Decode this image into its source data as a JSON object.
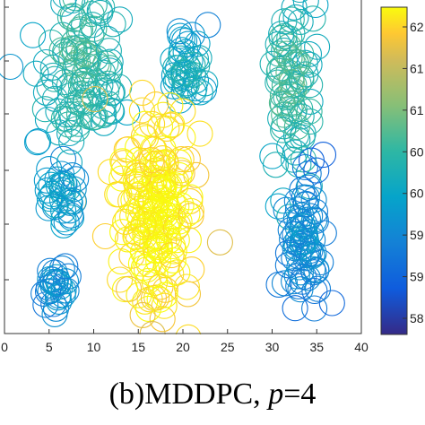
{
  "chart_data": {
    "type": "scatter",
    "marker": "open-circle",
    "title": "",
    "xlabel": "",
    "ylabel": "",
    "xlim": [
      0,
      40
    ],
    "x_ticks": [
      0,
      5,
      10,
      15,
      20,
      25,
      30,
      35,
      40
    ],
    "x_tick_labels": [
      "0",
      "5",
      "10",
      "15",
      "20",
      "25",
      "30",
      "35",
      "40"
    ],
    "grid": false,
    "colormap": "parula",
    "colorbar": {
      "position": "right",
      "tick_labels": [
        "62",
        "61",
        "61",
        "60",
        "60",
        "59",
        "59",
        "58"
      ]
    },
    "clusters": [
      {
        "id": "upper-left",
        "center": [
          8.5,
          8.2
        ],
        "spread": [
          3.6,
          2.6
        ],
        "count": 120,
        "color_value": 0.44
      },
      {
        "id": "upper-middle",
        "center": [
          20.5,
          8.0
        ],
        "spread": [
          2.0,
          1.0
        ],
        "count": 45,
        "color_value": 0.35
      },
      {
        "id": "upper-right",
        "center": [
          32.2,
          7.5
        ],
        "spread": [
          2.1,
          3.0
        ],
        "count": 90,
        "color_value": 0.45
      },
      {
        "id": "center-large",
        "center": [
          17.0,
          3.0
        ],
        "spread": [
          4.5,
          3.0
        ],
        "count": 200,
        "color_value": 0.9
      },
      {
        "id": "mid-left",
        "center": [
          6.5,
          3.7
        ],
        "spread": [
          1.5,
          1.0
        ],
        "count": 35,
        "color_value": 0.3
      },
      {
        "id": "lower-left",
        "center": [
          6.0,
          0.7
        ],
        "spread": [
          1.4,
          1.0
        ],
        "count": 30,
        "color_value": 0.22
      },
      {
        "id": "lower-right",
        "center": [
          33.5,
          2.0
        ],
        "spread": [
          2.0,
          2.2
        ],
        "count": 80,
        "color_value": 0.2
      }
    ]
  },
  "caption": {
    "prefix": "(b)MDDPC, ",
    "param": "p",
    "suffix": "=4"
  }
}
